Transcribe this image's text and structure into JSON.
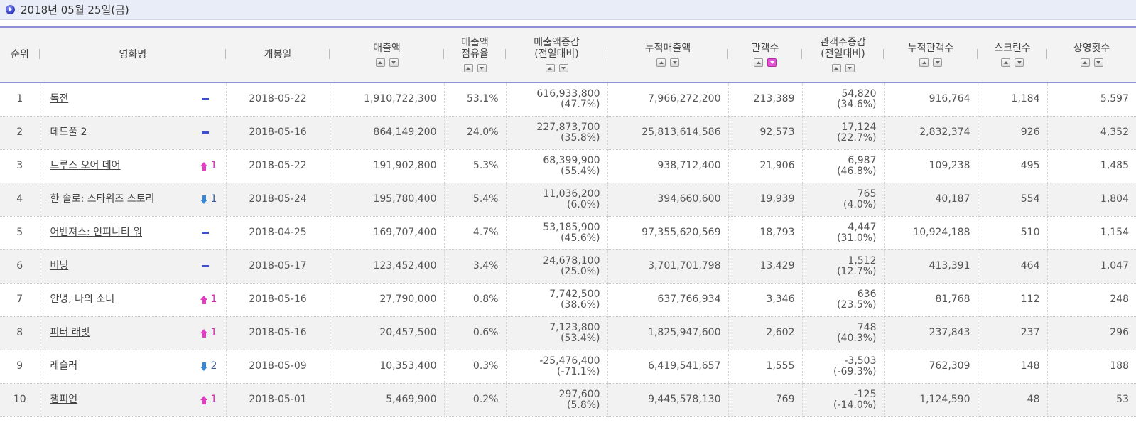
{
  "header": {
    "date_title": "2018년 05월 25일(금)"
  },
  "columns": {
    "rank": "순위",
    "title": "영화명",
    "release": "개봉일",
    "sales": "매출액",
    "share_1": "매출액",
    "share_2": "점유율",
    "sales_change_1": "매출액증감",
    "sales_change_2": "(전일대비)",
    "cum_sales": "누적매출액",
    "audience": "관객수",
    "aud_change_1": "관객수증감",
    "aud_change_2": "(전일대비)",
    "cum_audience": "누적관객수",
    "screens": "스크린수",
    "showings": "상영횟수"
  },
  "rows": [
    {
      "rank": "1",
      "title": "독전",
      "change_type": "none",
      "change_val": "",
      "release": "2018-05-22",
      "sales": "1,910,722,300",
      "share": "53.1%",
      "sales_change": "616,933,800",
      "sales_change_pct": "(47.7%)",
      "cum_sales": "7,966,272,200",
      "audience": "213,389",
      "aud_change": "54,820",
      "aud_change_pct": "(34.6%)",
      "cum_audience": "916,764",
      "screens": "1,184",
      "showings": "5,597"
    },
    {
      "rank": "2",
      "title": "데드풀 2",
      "change_type": "none",
      "change_val": "",
      "release": "2018-05-16",
      "sales": "864,149,200",
      "share": "24.0%",
      "sales_change": "227,873,700",
      "sales_change_pct": "(35.8%)",
      "cum_sales": "25,813,614,586",
      "audience": "92,573",
      "aud_change": "17,124",
      "aud_change_pct": "(22.7%)",
      "cum_audience": "2,832,374",
      "screens": "926",
      "showings": "4,352"
    },
    {
      "rank": "3",
      "title": "트루스 오어 데어",
      "change_type": "up",
      "change_val": "1",
      "release": "2018-05-22",
      "sales": "191,902,800",
      "share": "5.3%",
      "sales_change": "68,399,900",
      "sales_change_pct": "(55.4%)",
      "cum_sales": "938,712,400",
      "audience": "21,906",
      "aud_change": "6,987",
      "aud_change_pct": "(46.8%)",
      "cum_audience": "109,238",
      "screens": "495",
      "showings": "1,485"
    },
    {
      "rank": "4",
      "title": "한 솔로: 스타워즈 스토리",
      "change_type": "down",
      "change_val": "1",
      "release": "2018-05-24",
      "sales": "195,780,400",
      "share": "5.4%",
      "sales_change": "11,036,200",
      "sales_change_pct": "(6.0%)",
      "cum_sales": "394,660,600",
      "audience": "19,939",
      "aud_change": "765",
      "aud_change_pct": "(4.0%)",
      "cum_audience": "40,187",
      "screens": "554",
      "showings": "1,804"
    },
    {
      "rank": "5",
      "title": "어벤져스: 인피니티 워",
      "change_type": "none",
      "change_val": "",
      "release": "2018-04-25",
      "sales": "169,707,400",
      "share": "4.7%",
      "sales_change": "53,185,900",
      "sales_change_pct": "(45.6%)",
      "cum_sales": "97,355,620,569",
      "audience": "18,793",
      "aud_change": "4,447",
      "aud_change_pct": "(31.0%)",
      "cum_audience": "10,924,188",
      "screens": "510",
      "showings": "1,154"
    },
    {
      "rank": "6",
      "title": "버닝",
      "change_type": "none",
      "change_val": "",
      "release": "2018-05-17",
      "sales": "123,452,400",
      "share": "3.4%",
      "sales_change": "24,678,100",
      "sales_change_pct": "(25.0%)",
      "cum_sales": "3,701,701,798",
      "audience": "13,429",
      "aud_change": "1,512",
      "aud_change_pct": "(12.7%)",
      "cum_audience": "413,391",
      "screens": "464",
      "showings": "1,047"
    },
    {
      "rank": "7",
      "title": "안녕, 나의 소녀",
      "change_type": "up",
      "change_val": "1",
      "release": "2018-05-16",
      "sales": "27,790,000",
      "share": "0.8%",
      "sales_change": "7,742,500",
      "sales_change_pct": "(38.6%)",
      "cum_sales": "637,766,934",
      "audience": "3,346",
      "aud_change": "636",
      "aud_change_pct": "(23.5%)",
      "cum_audience": "81,768",
      "screens": "112",
      "showings": "248"
    },
    {
      "rank": "8",
      "title": "피터 래빗",
      "change_type": "up",
      "change_val": "1",
      "release": "2018-05-16",
      "sales": "20,457,500",
      "share": "0.6%",
      "sales_change": "7,123,800",
      "sales_change_pct": "(53.4%)",
      "cum_sales": "1,825,947,600",
      "audience": "2,602",
      "aud_change": "748",
      "aud_change_pct": "(40.3%)",
      "cum_audience": "237,843",
      "screens": "237",
      "showings": "296"
    },
    {
      "rank": "9",
      "title": "레슬러",
      "change_type": "down",
      "change_val": "2",
      "release": "2018-05-09",
      "sales": "10,353,400",
      "share": "0.3%",
      "sales_change": "-25,476,400",
      "sales_change_pct": "(-71.1%)",
      "cum_sales": "6,419,541,657",
      "audience": "1,555",
      "aud_change": "-3,503",
      "aud_change_pct": "(-69.3%)",
      "cum_audience": "762,309",
      "screens": "148",
      "showings": "188"
    },
    {
      "rank": "10",
      "title": "챔피언",
      "change_type": "up",
      "change_val": "1",
      "release": "2018-05-01",
      "sales": "5,469,900",
      "share": "0.2%",
      "sales_change": "297,600",
      "sales_change_pct": "(5.8%)",
      "cum_sales": "9,445,578,130",
      "audience": "769",
      "aud_change": "-125",
      "aud_change_pct": "(-14.0%)",
      "cum_audience": "1,124,590",
      "screens": "48",
      "showings": "53"
    }
  ],
  "colors": {
    "accent": "#8e8fd6",
    "up": "#e53cc4",
    "down": "#3a86d7",
    "dash": "#3d4fc9"
  }
}
